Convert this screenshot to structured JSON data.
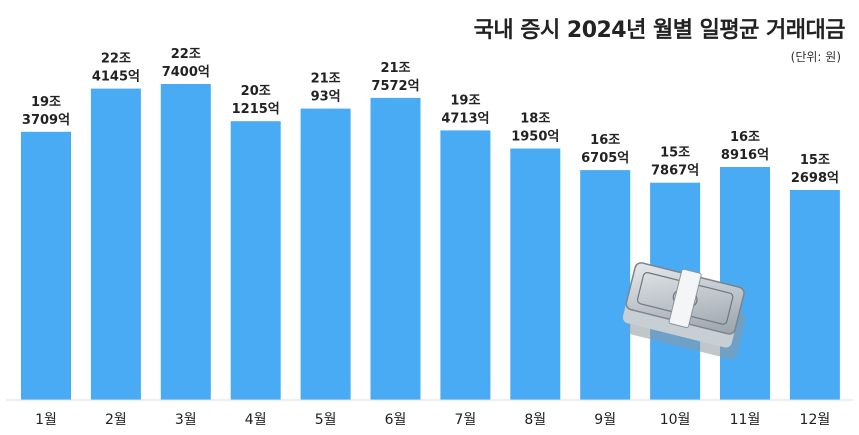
{
  "chart_data": {
    "type": "bar",
    "title": "국내 증시 2024년 월별 일평균 거래대금",
    "unit_note": "(단위: 원)",
    "categories": [
      "1월",
      "2월",
      "3월",
      "4월",
      "5월",
      "6월",
      "7월",
      "8월",
      "9월",
      "10월",
      "11월",
      "12월"
    ],
    "values": [
      193709,
      224145,
      227400,
      201215,
      210093,
      217572,
      194713,
      181950,
      166705,
      157867,
      168916,
      152698
    ],
    "value_unit": "억원",
    "labels_line1": [
      "19조",
      "22조",
      "22조",
      "20조",
      "21조",
      "21조",
      "19조",
      "18조",
      "16조",
      "15조",
      "16조",
      "15조"
    ],
    "labels_line2": [
      "3709억",
      "4145억",
      "7400억",
      "1215억",
      "93억",
      "7572억",
      "4713억",
      "1950억",
      "6705억",
      "7867억",
      "8916억",
      "2698억"
    ],
    "ylim": [
      0,
      227400
    ],
    "grid": false,
    "bar_color": "#4aabf5"
  }
}
